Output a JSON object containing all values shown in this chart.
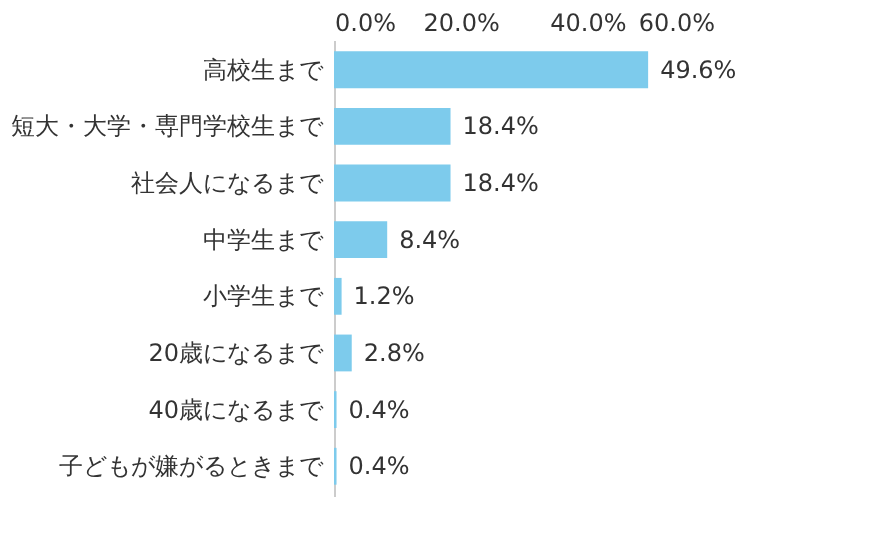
{
  "chart_data": {
    "type": "bar",
    "orientation": "horizontal",
    "categories": [
      "高校生まで",
      "短大・大学・専門学校生まで",
      "社会人になるまで",
      "中学生まで",
      "小学生まで",
      "20歳になるまで",
      "40歳になるまで",
      "子どもが嫌がるときまで"
    ],
    "values": [
      49.6,
      18.4,
      18.4,
      8.4,
      1.2,
      2.8,
      0.4,
      0.4
    ],
    "value_labels": [
      "49.6%",
      "18.4%",
      "18.4%",
      "8.4%",
      "1.2%",
      "2.8%",
      "0.4%",
      "0.4%"
    ],
    "color": "#7dcbec",
    "xlim": [
      0,
      60
    ],
    "xticks": [
      {
        "value": 0,
        "label": "0.0%"
      },
      {
        "value": 20,
        "label": "20.0%"
      },
      {
        "value": 40,
        "label": "40.0%"
      },
      {
        "value": 60,
        "label": "60.0%"
      }
    ],
    "grid": false
  }
}
